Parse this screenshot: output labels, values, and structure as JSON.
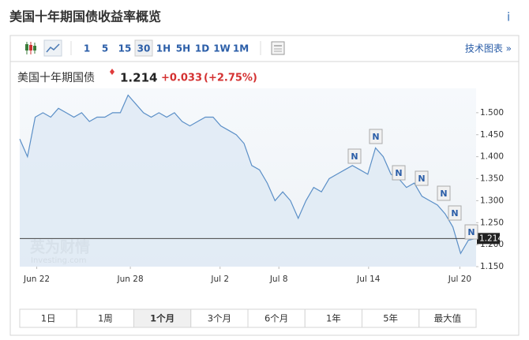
{
  "header": {
    "title": "美国十年期国债收益率概览",
    "info": "i"
  },
  "toolbar": {
    "intervals": [
      "1",
      "5",
      "15",
      "30",
      "1H",
      "5H",
      "1D",
      "1W",
      "1M"
    ],
    "selected": 3,
    "technical": "技术图表 »"
  },
  "quote": {
    "name": "美国十年期国债",
    "price": "1.214",
    "change": "+0.033",
    "change_pct": "(+2.75%)"
  },
  "chart_data": {
    "type": "line",
    "color": "#5b8fc7",
    "values": [
      1.44,
      1.4,
      1.49,
      1.5,
      1.49,
      1.51,
      1.5,
      1.49,
      1.5,
      1.48,
      1.49,
      1.49,
      1.5,
      1.5,
      1.54,
      1.52,
      1.5,
      1.49,
      1.5,
      1.49,
      1.5,
      1.48,
      1.47,
      1.48,
      1.49,
      1.49,
      1.47,
      1.46,
      1.45,
      1.43,
      1.38,
      1.37,
      1.34,
      1.3,
      1.32,
      1.3,
      1.26,
      1.3,
      1.33,
      1.32,
      1.35,
      1.36,
      1.37,
      1.38,
      1.37,
      1.36,
      1.42,
      1.4,
      1.36,
      1.35,
      1.33,
      1.34,
      1.31,
      1.3,
      1.29,
      1.27,
      1.24,
      1.18,
      1.21,
      1.214
    ],
    "xlim": [
      0,
      59
    ],
    "xticks": [
      {
        "value": 2.2,
        "label": "Jun 22"
      },
      {
        "value": 14.3,
        "label": "Jun 28"
      },
      {
        "value": 25.9,
        "label": "Jul 2"
      },
      {
        "value": 33.5,
        "label": "Jul 8"
      },
      {
        "value": 45.1,
        "label": "Jul 14"
      },
      {
        "value": 56.9,
        "label": "Jul 20"
      }
    ],
    "ylim": [
      1.15,
      1.55
    ],
    "yticks": [
      {
        "value": 1.15,
        "label": "1.150"
      },
      {
        "value": 1.2,
        "label": "1.200"
      },
      {
        "value": 1.25,
        "label": "1.250"
      },
      {
        "value": 1.3,
        "label": "1.300"
      },
      {
        "value": 1.35,
        "label": "1.350"
      },
      {
        "value": 1.4,
        "label": "1.400"
      },
      {
        "value": 1.45,
        "label": "1.450"
      },
      {
        "value": 1.5,
        "label": "1.500"
      }
    ],
    "current": 1.214,
    "watermark": [
      "英为财情",
      "Investing.com"
    ],
    "news_flags": [
      "N",
      "N",
      "N",
      "N",
      "N",
      "N",
      "N"
    ]
  },
  "periods": {
    "labels": [
      "1日",
      "1周",
      "1个月",
      "3个月",
      "6个月",
      "1年",
      "5年",
      "最大值"
    ],
    "selected": 2
  }
}
